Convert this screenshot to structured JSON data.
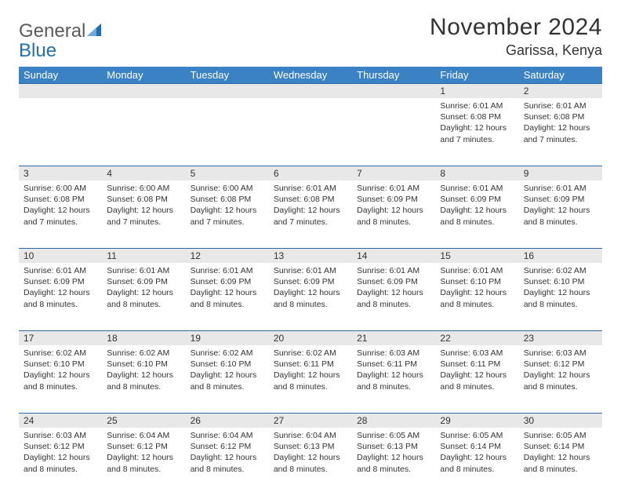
{
  "brand": {
    "line1": "General",
    "line2": "Blue"
  },
  "title": "November 2024",
  "location": "Garissa, Kenya",
  "colors": {
    "header_bg": "#3b82c4",
    "header_text": "#ffffff",
    "daynum_bg": "#e8e8e8",
    "rule": "#2f6aa8",
    "text": "#333333",
    "logo_gray": "#5b5b5b",
    "logo_blue": "#1f6fb2"
  },
  "weekdays": [
    "Sunday",
    "Monday",
    "Tuesday",
    "Wednesday",
    "Thursday",
    "Friday",
    "Saturday"
  ],
  "weeks": [
    [
      null,
      null,
      null,
      null,
      null,
      {
        "n": "1",
        "sr": "6:01 AM",
        "ss": "6:08 PM",
        "dl": "12 hours and 7 minutes."
      },
      {
        "n": "2",
        "sr": "6:01 AM",
        "ss": "6:08 PM",
        "dl": "12 hours and 7 minutes."
      }
    ],
    [
      {
        "n": "3",
        "sr": "6:00 AM",
        "ss": "6:08 PM",
        "dl": "12 hours and 7 minutes."
      },
      {
        "n": "4",
        "sr": "6:00 AM",
        "ss": "6:08 PM",
        "dl": "12 hours and 7 minutes."
      },
      {
        "n": "5",
        "sr": "6:00 AM",
        "ss": "6:08 PM",
        "dl": "12 hours and 7 minutes."
      },
      {
        "n": "6",
        "sr": "6:01 AM",
        "ss": "6:08 PM",
        "dl": "12 hours and 7 minutes."
      },
      {
        "n": "7",
        "sr": "6:01 AM",
        "ss": "6:09 PM",
        "dl": "12 hours and 8 minutes."
      },
      {
        "n": "8",
        "sr": "6:01 AM",
        "ss": "6:09 PM",
        "dl": "12 hours and 8 minutes."
      },
      {
        "n": "9",
        "sr": "6:01 AM",
        "ss": "6:09 PM",
        "dl": "12 hours and 8 minutes."
      }
    ],
    [
      {
        "n": "10",
        "sr": "6:01 AM",
        "ss": "6:09 PM",
        "dl": "12 hours and 8 minutes."
      },
      {
        "n": "11",
        "sr": "6:01 AM",
        "ss": "6:09 PM",
        "dl": "12 hours and 8 minutes."
      },
      {
        "n": "12",
        "sr": "6:01 AM",
        "ss": "6:09 PM",
        "dl": "12 hours and 8 minutes."
      },
      {
        "n": "13",
        "sr": "6:01 AM",
        "ss": "6:09 PM",
        "dl": "12 hours and 8 minutes."
      },
      {
        "n": "14",
        "sr": "6:01 AM",
        "ss": "6:09 PM",
        "dl": "12 hours and 8 minutes."
      },
      {
        "n": "15",
        "sr": "6:01 AM",
        "ss": "6:10 PM",
        "dl": "12 hours and 8 minutes."
      },
      {
        "n": "16",
        "sr": "6:02 AM",
        "ss": "6:10 PM",
        "dl": "12 hours and 8 minutes."
      }
    ],
    [
      {
        "n": "17",
        "sr": "6:02 AM",
        "ss": "6:10 PM",
        "dl": "12 hours and 8 minutes."
      },
      {
        "n": "18",
        "sr": "6:02 AM",
        "ss": "6:10 PM",
        "dl": "12 hours and 8 minutes."
      },
      {
        "n": "19",
        "sr": "6:02 AM",
        "ss": "6:10 PM",
        "dl": "12 hours and 8 minutes."
      },
      {
        "n": "20",
        "sr": "6:02 AM",
        "ss": "6:11 PM",
        "dl": "12 hours and 8 minutes."
      },
      {
        "n": "21",
        "sr": "6:03 AM",
        "ss": "6:11 PM",
        "dl": "12 hours and 8 minutes."
      },
      {
        "n": "22",
        "sr": "6:03 AM",
        "ss": "6:11 PM",
        "dl": "12 hours and 8 minutes."
      },
      {
        "n": "23",
        "sr": "6:03 AM",
        "ss": "6:12 PM",
        "dl": "12 hours and 8 minutes."
      }
    ],
    [
      {
        "n": "24",
        "sr": "6:03 AM",
        "ss": "6:12 PM",
        "dl": "12 hours and 8 minutes."
      },
      {
        "n": "25",
        "sr": "6:04 AM",
        "ss": "6:12 PM",
        "dl": "12 hours and 8 minutes."
      },
      {
        "n": "26",
        "sr": "6:04 AM",
        "ss": "6:12 PM",
        "dl": "12 hours and 8 minutes."
      },
      {
        "n": "27",
        "sr": "6:04 AM",
        "ss": "6:13 PM",
        "dl": "12 hours and 8 minutes."
      },
      {
        "n": "28",
        "sr": "6:05 AM",
        "ss": "6:13 PM",
        "dl": "12 hours and 8 minutes."
      },
      {
        "n": "29",
        "sr": "6:05 AM",
        "ss": "6:14 PM",
        "dl": "12 hours and 8 minutes."
      },
      {
        "n": "30",
        "sr": "6:05 AM",
        "ss": "6:14 PM",
        "dl": "12 hours and 8 minutes."
      }
    ]
  ],
  "labels": {
    "sunrise": "Sunrise:",
    "sunset": "Sunset:",
    "daylight": "Daylight:"
  }
}
